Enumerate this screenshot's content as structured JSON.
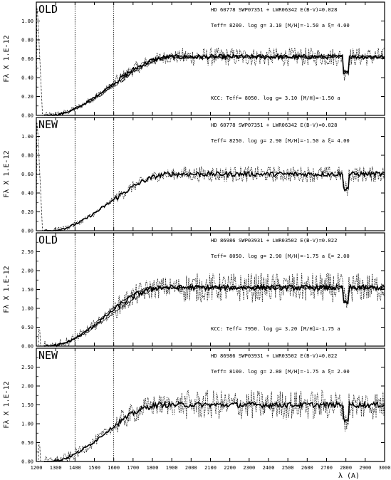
{
  "chart_data": [
    {
      "type": "line",
      "tag": "OLD",
      "ylabel": "Fλ X   1.E-12",
      "xlim": [
        1200,
        3000
      ],
      "ylim": [
        0,
        1.2
      ],
      "yticks": [
        "0.00",
        "0.20",
        "0.40",
        "0.60",
        "0.80",
        "1.00"
      ],
      "yvals": [
        0,
        0.2,
        0.4,
        0.6,
        0.8,
        1.0
      ],
      "info_line1": "HD 60778  SWP07351 + LWR06342 E(B-V)=0.028",
      "info_line2": "Teff=  8200.  log g= 3.10 [M/H]=-1.50 a ξ= 4.00",
      "note": "KCC: Teff=  8050. log g= 3.10 [M/H]=-1.50 a",
      "spike": [
        1200,
        1240,
        0.0,
        1.15
      ],
      "vlines": [
        1400,
        1600
      ],
      "rise_start": 1260,
      "rise_end": 1900,
      "level": 0.62,
      "series": [
        {
          "style": "dotted",
          "noise": 0.07
        },
        {
          "style": "thick",
          "noise": 0.025
        },
        {
          "style": "thin",
          "noise": 0.02,
          "offset": -0.05
        },
        {
          "style": "thin2",
          "noise": 0.015,
          "offset": -0.03
        }
      ]
    },
    {
      "type": "line",
      "tag": "NEW",
      "ylabel": "Fλ X   1.E-12",
      "xlim": [
        1200,
        3000
      ],
      "ylim": [
        0,
        1.2
      ],
      "yticks": [
        "0.00",
        "0.20",
        "0.40",
        "0.60",
        "0.80",
        "1.00"
      ],
      "yvals": [
        0,
        0.2,
        0.4,
        0.6,
        0.8,
        1.0
      ],
      "info_line1": "HD 60778  SWP07351 + LWR06342 E(B-V)=0.028",
      "info_line2": "Teff=  8250.  log g= 2.90 [M/H]=-1.50 a ξ= 4.00",
      "note": "",
      "spike": [
        1200,
        1240,
        0.0,
        1.15
      ],
      "vlines": [
        1400,
        1600
      ],
      "rise_start": 1260,
      "rise_end": 1900,
      "level": 0.6,
      "series": [
        {
          "style": "dotted",
          "noise": 0.06
        },
        {
          "style": "thick",
          "noise": 0.025
        }
      ]
    },
    {
      "type": "line",
      "tag": "OLD",
      "ylabel": "Fλ X   1.E-12",
      "xlim": [
        1200,
        3000
      ],
      "ylim": [
        0,
        3.0
      ],
      "yticks": [
        "0.00",
        "0.50",
        "1.00",
        "1.50",
        "2.00",
        "2.50"
      ],
      "yvals": [
        0,
        0.5,
        1.0,
        1.5,
        2.0,
        2.5
      ],
      "info_line1": "HD 86986  SWP03931 + LWR03502 E(B-V)=0.022",
      "info_line2": "Teff=  8050.  log g= 2.90 [M/H]=-1.75 a ξ= 2.00",
      "note": "KCC: Teff=  7950. log g= 3.20 [M/H]=-1.75 a",
      "spike": [
        1210,
        1230,
        0.0,
        0.45
      ],
      "vlines": [
        1400,
        1600
      ],
      "rise_start": 1260,
      "rise_end": 1850,
      "level": 1.55,
      "series": [
        {
          "style": "dotted",
          "noise": 0.28
        },
        {
          "style": "thick",
          "noise": 0.07
        },
        {
          "style": "thin",
          "noise": 0.05,
          "offset": -0.05
        },
        {
          "style": "thin2",
          "noise": 0.04,
          "offset": 0.04
        }
      ]
    },
    {
      "type": "line",
      "tag": "NEW",
      "ylabel": "Fλ X   1.E-12",
      "xlim": [
        1200,
        3000
      ],
      "ylim": [
        0,
        3.0
      ],
      "yticks": [
        "0.00",
        "0.50",
        "1.00",
        "1.50",
        "2.00",
        "2.50"
      ],
      "yvals": [
        0,
        0.5,
        1.0,
        1.5,
        2.0,
        2.5
      ],
      "info_line1": "HD 86986  SWP03931 + LWR03502 E(B-V)=0.022",
      "info_line2": "Teff=  8100.  log g= 2.80 [M/H]=-1.75 a ξ= 2.00",
      "note": "",
      "spike": [
        1210,
        1230,
        0.0,
        0.45
      ],
      "vlines": [
        1400,
        1600
      ],
      "rise_start": 1260,
      "rise_end": 1850,
      "level": 1.5,
      "series": [
        {
          "style": "dotted",
          "noise": 0.28
        },
        {
          "style": "thick",
          "noise": 0.07
        }
      ]
    }
  ],
  "xaxis": {
    "ticks": [
      "1200",
      "1300",
      "1400",
      "1500",
      "1600",
      "1700",
      "1800",
      "1900",
      "2000",
      "2100",
      "2200",
      "2300",
      "2400",
      "2500",
      "2600",
      "2700",
      "2800",
      "2900",
      "3000"
    ],
    "values": [
      1200,
      1300,
      1400,
      1500,
      1600,
      1700,
      1800,
      1900,
      2000,
      2100,
      2200,
      2300,
      2400,
      2500,
      2600,
      2700,
      2800,
      2900,
      3000
    ],
    "label": "λ (A)"
  }
}
